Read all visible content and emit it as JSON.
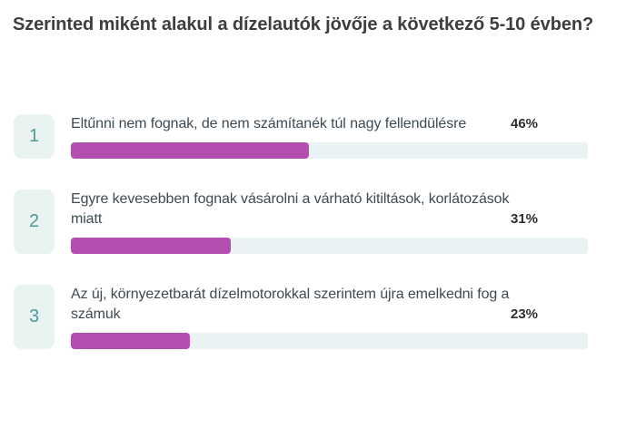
{
  "question": {
    "title": "Szerinted miként alakul a dízelautók jövője a következő 5-10 évben?"
  },
  "results": [
    {
      "rank": "1",
      "label": "Eltűnni nem fognak, de nem számítanék túl nagy fellendülésre",
      "percent_label": "46%",
      "percent": 46
    },
    {
      "rank": "2",
      "label": "Egyre kevesebben fognak vásárolni a várható kitiltások, korlátozások miatt",
      "percent_label": "31%",
      "percent": 31
    },
    {
      "rank": "3",
      "label": "Az új, környezetbarát dízelmotorokkal szerintem újra emelkedni fog a számuk",
      "percent_label": "23%",
      "percent": 23
    }
  ],
  "colors": {
    "bar_fill": "#b44fb0",
    "bar_track": "#e9f3f3",
    "badge_bg": "#e9f3f2",
    "badge_text": "#4f999c"
  },
  "chart_data": {
    "type": "bar",
    "orientation": "horizontal",
    "title": "Szerinted miként alakul a dízelautók jövője a következő 5-10 évben?",
    "categories": [
      "Eltűnni nem fognak, de nem számítanék túl nagy fellendülésre",
      "Egyre kevesebben fognak vásárolni a várható kitiltások, korlátozások miatt",
      "Az új, környezetbarát dízelmotorokkal szerintem újra emelkedni fog a számuk"
    ],
    "values": [
      46,
      31,
      23
    ],
    "value_labels": [
      "46%",
      "31%",
      "23%"
    ],
    "xlabel": "",
    "ylabel": "",
    "xlim": [
      0,
      100
    ],
    "grid": false,
    "legend": false
  }
}
